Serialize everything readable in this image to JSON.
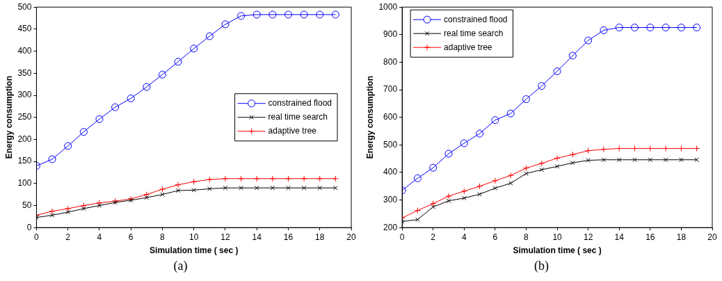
{
  "chart_data": [
    {
      "type": "line",
      "xlabel": "Simulation time ( sec )",
      "ylabel": "Energy consumption",
      "annotations": [
        "(a)"
      ],
      "x": [
        0,
        1,
        2,
        3,
        4,
        5,
        6,
        7,
        8,
        9,
        10,
        11,
        12,
        13,
        14,
        15,
        16,
        17,
        18,
        19
      ],
      "xlim": [
        0,
        20
      ],
      "xticks": [
        0,
        2,
        4,
        6,
        8,
        10,
        12,
        14,
        16,
        18,
        20
      ],
      "ylim": [
        0,
        500
      ],
      "yticks": [
        0,
        50,
        100,
        150,
        200,
        250,
        300,
        350,
        400,
        450,
        500
      ],
      "grid": false,
      "legend": "right",
      "line_style": "solid",
      "series": [
        {
          "name": "constrained flood",
          "color": "#0000ff",
          "marker": "circle",
          "values": [
            140,
            155,
            185,
            217,
            246,
            273,
            293,
            319,
            347,
            376,
            406,
            434,
            461,
            480,
            483,
            483,
            483,
            483,
            483,
            483
          ]
        },
        {
          "name": "real time search",
          "color": "#000000",
          "marker": "x",
          "values": [
            23,
            28,
            35,
            43,
            50,
            57,
            62,
            68,
            75,
            84,
            85,
            88,
            90,
            90,
            90,
            90,
            90,
            90,
            90,
            90
          ]
        },
        {
          "name": "adaptive tree",
          "color": "#ff0000",
          "marker": "cross",
          "values": [
            28,
            37,
            43,
            50,
            56,
            60,
            65,
            75,
            87,
            97,
            104,
            109,
            111,
            111,
            111,
            111,
            111,
            111,
            111,
            111
          ]
        }
      ]
    },
    {
      "type": "line",
      "xlabel": "Simulation time ( sec )",
      "ylabel": "Energy consumption",
      "annotations": [
        "(b)"
      ],
      "x": [
        0,
        1,
        2,
        3,
        4,
        5,
        6,
        7,
        8,
        9,
        10,
        11,
        12,
        13,
        14,
        15,
        16,
        17,
        18,
        19
      ],
      "xlim": [
        0,
        20
      ],
      "xticks": [
        0,
        2,
        4,
        6,
        8,
        10,
        12,
        14,
        16,
        18,
        20
      ],
      "ylim": [
        200,
        1000
      ],
      "yticks": [
        200,
        300,
        400,
        500,
        600,
        700,
        800,
        900,
        1000
      ],
      "grid": false,
      "legend": "top left",
      "line_style": "solid",
      "series": [
        {
          "name": "constrained flood",
          "color": "#0000ff",
          "marker": "circle",
          "values": [
            335,
            379,
            417,
            468,
            506,
            541,
            590,
            614,
            666,
            714,
            767,
            824,
            879,
            916,
            926,
            926,
            926,
            926,
            926,
            926
          ]
        },
        {
          "name": "real time search",
          "color": "#000000",
          "marker": "x",
          "values": [
            222,
            229,
            275,
            297,
            307,
            321,
            343,
            361,
            396,
            410,
            422,
            435,
            444,
            446,
            446,
            446,
            446,
            446,
            446,
            446
          ]
        },
        {
          "name": "adaptive tree",
          "color": "#ff0000",
          "marker": "cross",
          "values": [
            235,
            262,
            287,
            314,
            332,
            350,
            370,
            389,
            416,
            433,
            452,
            465,
            479,
            484,
            487,
            487,
            487,
            487,
            487,
            487
          ]
        }
      ]
    }
  ]
}
